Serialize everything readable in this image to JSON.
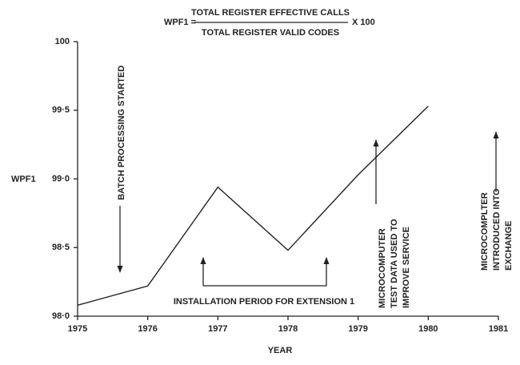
{
  "chart_data": {
    "type": "line",
    "formula": {
      "lhs": "WPF1 =",
      "numerator": "TOTAL REGISTER EFFECTIVE CALLS",
      "denominator": "TOTAL REGISTER VALID CODES",
      "factor": "X 100"
    },
    "ylabel": "WPF1",
    "xlabel": "YEAR",
    "x": [
      1975,
      1976,
      1977,
      1978,
      1979,
      1980
    ],
    "series": [
      {
        "color": "#222222",
        "values": [
          98.08,
          98.22,
          98.94,
          98.48,
          99.03,
          99.53
        ]
      }
    ],
    "xlim": [
      1975,
      1981
    ],
    "xticks": [
      1975,
      1976,
      1977,
      1978,
      1979,
      1980,
      1981
    ],
    "ylim": [
      98,
      100
    ],
    "yticks": [
      {
        "value": 98,
        "label": "98·0"
      },
      {
        "value": 98.5,
        "label": "98·5"
      },
      {
        "value": 99,
        "label": "99·0"
      },
      {
        "value": 99.5,
        "label": "99·5"
      },
      100
    ],
    "annotations": [
      {
        "lines": [
          "BATCH PROCESSING STARTED"
        ]
      },
      {
        "lines": [
          "INSTALLATION PERIOD FOR EXTENSION 1"
        ]
      },
      {
        "lines": [
          "MICROCOMPUTER",
          "TEST DATA USED TO",
          "IMPROVE SERVICE"
        ]
      },
      {
        "lines": [
          "MICROCOMPLTER",
          "INTRODUCED INTO",
          "EXCHANGE"
        ]
      }
    ]
  }
}
